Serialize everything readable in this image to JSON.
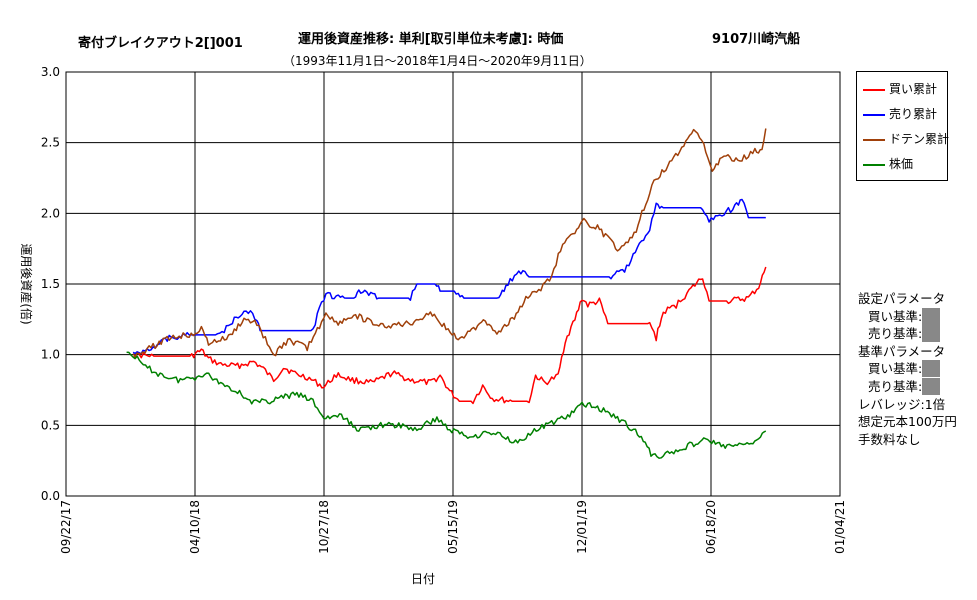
{
  "header": {
    "left": "寄付ブレイクアウト2[]001",
    "center": "運用後資産推移: 単利[取引単位未考慮]: 時価",
    "right": "9107川崎汽船",
    "period": "（1993年11月1日～2018年1月4日～2020年9月11日）"
  },
  "chart_data": {
    "type": "line",
    "xlabel": "日付",
    "ylabel": "運用後資産(倍)",
    "x_ticks": [
      "09/22/17",
      "04/10/18",
      "10/27/18",
      "05/15/19",
      "12/01/19",
      "06/18/20",
      "01/04/21"
    ],
    "x_range": [
      "2017-09-22",
      "2021-01-04"
    ],
    "y_ticks": [
      "0.0",
      "0.5",
      "1.0",
      "1.5",
      "2.0",
      "2.5",
      "3.0"
    ],
    "ylim": [
      0,
      3
    ],
    "grid": true,
    "legend_position": "right-top",
    "series": [
      {
        "name": "買い累計",
        "color": "#ff0000",
        "points": [
          [
            "2018-01-04",
            1.0
          ],
          [
            "2018-02-05",
            0.99
          ],
          [
            "2018-03-05",
            0.99
          ],
          [
            "2018-04-05",
            0.99
          ],
          [
            "2018-04-20",
            1.03
          ],
          [
            "2018-05-01",
            0.97
          ],
          [
            "2018-05-20",
            0.93
          ],
          [
            "2018-06-15",
            0.92
          ],
          [
            "2018-07-10",
            0.95
          ],
          [
            "2018-07-25",
            0.9
          ],
          [
            "2018-08-10",
            0.82
          ],
          [
            "2018-08-25",
            0.91
          ],
          [
            "2018-09-15",
            0.86
          ],
          [
            "2018-10-01",
            0.84
          ],
          [
            "2018-10-27",
            0.77
          ],
          [
            "2018-11-15",
            0.86
          ],
          [
            "2018-12-10",
            0.82
          ],
          [
            "2019-01-10",
            0.8
          ],
          [
            "2019-02-10",
            0.87
          ],
          [
            "2019-03-10",
            0.82
          ],
          [
            "2019-04-10",
            0.8
          ],
          [
            "2019-04-25",
            0.85
          ],
          [
            "2019-05-10",
            0.74
          ],
          [
            "2019-05-25",
            0.67
          ],
          [
            "2019-06-15",
            0.67
          ],
          [
            "2019-06-30",
            0.78
          ],
          [
            "2019-07-15",
            0.69
          ],
          [
            "2019-08-15",
            0.67
          ],
          [
            "2019-09-10",
            0.67
          ],
          [
            "2019-09-20",
            0.85
          ],
          [
            "2019-10-05",
            0.8
          ],
          [
            "2019-10-25",
            0.85
          ],
          [
            "2019-11-05",
            1.1
          ],
          [
            "2019-11-20",
            1.25
          ],
          [
            "2019-12-01",
            1.4
          ],
          [
            "2019-12-10",
            1.35
          ],
          [
            "2019-12-28",
            1.38
          ],
          [
            "2020-01-10",
            1.22
          ],
          [
            "2020-02-20",
            1.22
          ],
          [
            "2020-03-15",
            1.22
          ],
          [
            "2020-03-25",
            1.12
          ],
          [
            "2020-04-05",
            1.3
          ],
          [
            "2020-04-25",
            1.35
          ],
          [
            "2020-05-15",
            1.45
          ],
          [
            "2020-06-05",
            1.55
          ],
          [
            "2020-06-15",
            1.38
          ],
          [
            "2020-07-15",
            1.38
          ],
          [
            "2020-08-15",
            1.4
          ],
          [
            "2020-08-31",
            1.48
          ],
          [
            "2020-09-11",
            1.62
          ]
        ]
      },
      {
        "name": "売り累計",
        "color": "#0000ff",
        "points": [
          [
            "2018-01-04",
            1.0
          ],
          [
            "2018-02-01",
            1.05
          ],
          [
            "2018-03-01",
            1.12
          ],
          [
            "2018-04-01",
            1.14
          ],
          [
            "2018-05-15",
            1.14
          ],
          [
            "2018-06-01",
            1.2
          ],
          [
            "2018-06-25",
            1.32
          ],
          [
            "2018-07-15",
            1.26
          ],
          [
            "2018-07-20",
            1.17
          ],
          [
            "2018-10-10",
            1.17
          ],
          [
            "2018-10-20",
            1.35
          ],
          [
            "2018-10-30",
            1.42
          ],
          [
            "2018-12-01",
            1.4
          ],
          [
            "2018-12-15",
            1.4
          ],
          [
            "2018-12-20",
            1.45
          ],
          [
            "2019-01-20",
            1.4
          ],
          [
            "2019-03-10",
            1.4
          ],
          [
            "2019-03-20",
            1.5
          ],
          [
            "2019-04-20",
            1.5
          ],
          [
            "2019-04-25",
            1.45
          ],
          [
            "2019-05-20",
            1.45
          ],
          [
            "2019-06-01",
            1.4
          ],
          [
            "2019-07-25",
            1.4
          ],
          [
            "2019-08-05",
            1.48
          ],
          [
            "2019-08-25",
            1.6
          ],
          [
            "2019-09-10",
            1.55
          ],
          [
            "2019-12-01",
            1.55
          ],
          [
            "2020-01-15",
            1.55
          ],
          [
            "2020-02-05",
            1.6
          ],
          [
            "2020-02-25",
            1.75
          ],
          [
            "2020-03-15",
            1.9
          ],
          [
            "2020-03-25",
            2.05
          ],
          [
            "2020-04-05",
            2.04
          ],
          [
            "2020-06-05",
            2.04
          ],
          [
            "2020-06-15",
            1.95
          ],
          [
            "2020-07-05",
            2.0
          ],
          [
            "2020-07-25",
            2.04
          ],
          [
            "2020-08-05",
            2.1
          ],
          [
            "2020-08-15",
            1.97
          ],
          [
            "2020-09-11",
            1.97
          ]
        ]
      },
      {
        "name": "ドテン累計",
        "color": "#a0400a",
        "points": [
          [
            "2018-01-04",
            1.0
          ],
          [
            "2018-02-01",
            1.05
          ],
          [
            "2018-03-01",
            1.12
          ],
          [
            "2018-04-01",
            1.14
          ],
          [
            "2018-04-20",
            1.18
          ],
          [
            "2018-05-01",
            1.08
          ],
          [
            "2018-06-01",
            1.12
          ],
          [
            "2018-06-25",
            1.25
          ],
          [
            "2018-07-15",
            1.22
          ],
          [
            "2018-08-10",
            1.0
          ],
          [
            "2018-09-01",
            1.1
          ],
          [
            "2018-10-01",
            1.05
          ],
          [
            "2018-10-20",
            1.2
          ],
          [
            "2018-10-30",
            1.3
          ],
          [
            "2018-11-15",
            1.22
          ],
          [
            "2018-12-15",
            1.28
          ],
          [
            "2019-01-20",
            1.2
          ],
          [
            "2019-03-10",
            1.22
          ],
          [
            "2019-04-10",
            1.3
          ],
          [
            "2019-05-01",
            1.2
          ],
          [
            "2019-05-20",
            1.12
          ],
          [
            "2019-06-10",
            1.15
          ],
          [
            "2019-07-01",
            1.25
          ],
          [
            "2019-07-25",
            1.15
          ],
          [
            "2019-08-15",
            1.25
          ],
          [
            "2019-09-05",
            1.4
          ],
          [
            "2019-09-25",
            1.45
          ],
          [
            "2019-10-15",
            1.55
          ],
          [
            "2019-11-01",
            1.8
          ],
          [
            "2019-11-20",
            1.85
          ],
          [
            "2019-12-01",
            1.95
          ],
          [
            "2019-12-25",
            1.9
          ],
          [
            "2020-01-25",
            1.75
          ],
          [
            "2020-02-20",
            1.85
          ],
          [
            "2020-03-15",
            2.15
          ],
          [
            "2020-03-25",
            2.25
          ],
          [
            "2020-04-15",
            2.35
          ],
          [
            "2020-05-10",
            2.5
          ],
          [
            "2020-05-25",
            2.6
          ],
          [
            "2020-06-10",
            2.45
          ],
          [
            "2020-06-20",
            2.3
          ],
          [
            "2020-07-05",
            2.4
          ],
          [
            "2020-08-05",
            2.38
          ],
          [
            "2020-08-25",
            2.45
          ],
          [
            "2020-09-05",
            2.44
          ],
          [
            "2020-09-11",
            2.6
          ]
        ]
      },
      {
        "name": "株価",
        "color": "#008000",
        "points": [
          [
            "2017-12-25",
            1.02
          ],
          [
            "2018-01-04",
            1.0
          ],
          [
            "2018-01-20",
            0.92
          ],
          [
            "2018-02-15",
            0.86
          ],
          [
            "2018-03-15",
            0.82
          ],
          [
            "2018-04-10",
            0.84
          ],
          [
            "2018-04-25",
            0.87
          ],
          [
            "2018-05-20",
            0.8
          ],
          [
            "2018-06-15",
            0.74
          ],
          [
            "2018-07-10",
            0.66
          ],
          [
            "2018-08-01",
            0.67
          ],
          [
            "2018-08-25",
            0.7
          ],
          [
            "2018-09-15",
            0.72
          ],
          [
            "2018-10-10",
            0.67
          ],
          [
            "2018-10-27",
            0.55
          ],
          [
            "2018-11-20",
            0.57
          ],
          [
            "2018-12-20",
            0.47
          ],
          [
            "2019-01-20",
            0.5
          ],
          [
            "2019-02-20",
            0.5
          ],
          [
            "2019-03-20",
            0.47
          ],
          [
            "2019-04-20",
            0.55
          ],
          [
            "2019-05-10",
            0.47
          ],
          [
            "2019-06-10",
            0.42
          ],
          [
            "2019-07-10",
            0.45
          ],
          [
            "2019-07-30",
            0.43
          ],
          [
            "2019-08-20",
            0.38
          ],
          [
            "2019-09-15",
            0.45
          ],
          [
            "2019-10-15",
            0.52
          ],
          [
            "2019-11-15",
            0.58
          ],
          [
            "2019-12-01",
            0.65
          ],
          [
            "2019-12-25",
            0.63
          ],
          [
            "2020-01-25",
            0.55
          ],
          [
            "2020-02-25",
            0.45
          ],
          [
            "2020-03-20",
            0.28
          ],
          [
            "2020-04-15",
            0.3
          ],
          [
            "2020-05-10",
            0.35
          ],
          [
            "2020-06-10",
            0.4
          ],
          [
            "2020-07-10",
            0.35
          ],
          [
            "2020-08-10",
            0.36
          ],
          [
            "2020-08-31",
            0.4
          ],
          [
            "2020-09-11",
            0.46
          ]
        ]
      }
    ]
  },
  "params": {
    "setting_title": "設定パラメータ",
    "buy_label": "買い基準:",
    "sell_label": "売り基準:",
    "base_title": "基準パラメータ",
    "leverage": "レバレッジ:1倍",
    "capital": "想定元本100万円",
    "fee": "手数料なし"
  }
}
